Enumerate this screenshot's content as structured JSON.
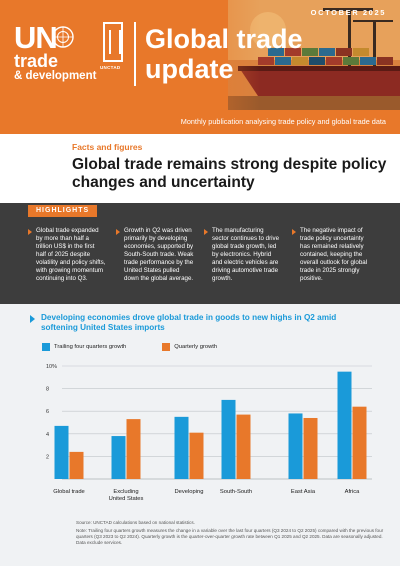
{
  "header": {
    "date": "OCTOBER 2025",
    "logo_un": "UN",
    "logo_trade": "trade",
    "logo_dev": "& development",
    "logo_unctad": "UNCTAD",
    "title_line1": "Global trade",
    "title_line2": "update",
    "subtitle": "Monthly publication analysing trade policy and global trade data"
  },
  "facts": {
    "label": "Facts and figures",
    "title": "Global trade remains strong despite policy changes and uncertainty"
  },
  "highlights": {
    "tag": "HIGHLIGHTS",
    "items": [
      "Global trade expanded by more than half a trillion US$ in the first half of 2025 despite volatility and policy shifts, with growing momentum continuing into Q3.",
      "Growth in Q2 was driven primarily by developing economies, supported by South-South trade. Weak trade performance by the United States pulled down the global average.",
      "The manufacturing sector continues to drive global trade growth, led by electronics. Hybrid and electric vehicles are driving automotive trade growth.",
      "The negative impact of trade policy uncertainty has remained relatively contained, keeping the overall outlook for global trade in 2025 strongly positive."
    ]
  },
  "chart_section": {
    "title": "Developing economies drove global trade in goods to new highs in Q2 amid softening United States imports",
    "source": "Source: UNCTAD calculations based on national statistics.",
    "note": "Note: Trailing four quarters growth measures the change in a variable over the last four quarters (Q3 2024 to Q2 2025) compared with the previous four quarters (Q3 2023 to Q2 2024). Quarterly growth is the quarter-over-quarter growth rate between Q1 2025 and Q2 2025. Data are seasonally adjusted. Data exclude services."
  },
  "colors": {
    "orange": "#e8782a",
    "blue": "#1a9ad9",
    "dark": "#3d3d3d"
  },
  "chart_data": {
    "type": "bar",
    "categories": [
      "Global trade",
      "Excluding\nUnited States",
      "Developing",
      "South-South",
      "East Asia",
      "Africa"
    ],
    "series": [
      {
        "name": "Trailing four quarters growth",
        "color": "#1a9ad9",
        "values": [
          4.7,
          3.8,
          5.5,
          7.0,
          5.8,
          9.5
        ]
      },
      {
        "name": "Quarterly growth",
        "color": "#e8782a",
        "values": [
          2.4,
          5.3,
          4.1,
          5.7,
          5.4,
          6.4
        ]
      }
    ],
    "ylim": [
      0,
      10
    ],
    "yticks": [
      2,
      4,
      6,
      8,
      10
    ],
    "ytick_labels": [
      "2",
      "4",
      "6",
      "8",
      "10%"
    ],
    "grid": true,
    "legend": "top-left"
  }
}
